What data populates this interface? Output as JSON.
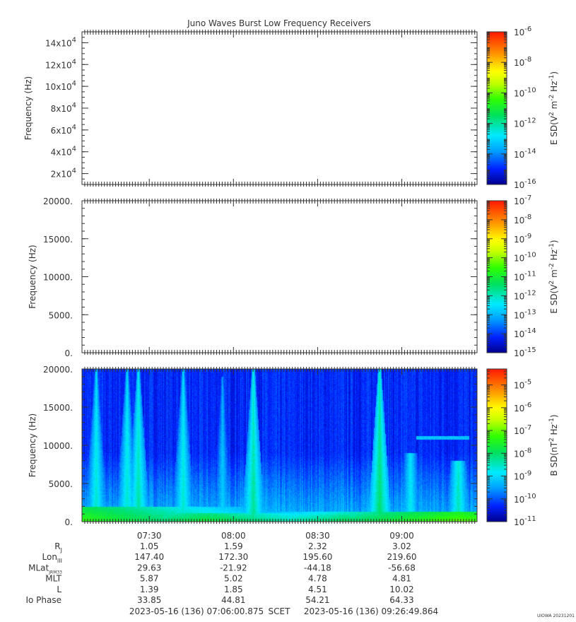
{
  "title": "Juno Waves Burst Low Frequency Receivers",
  "chart_data": [
    {
      "type": "heatmap",
      "panel": "top",
      "ylabel": "Frequency (Hz)",
      "y_scale": "linear",
      "ylim": [
        10000,
        150000
      ],
      "y_ticks": [
        {
          "value": 20000,
          "mant": "2x10",
          "exp": "4"
        },
        {
          "value": 40000,
          "mant": "4x10",
          "exp": "4"
        },
        {
          "value": 60000,
          "mant": "6x10",
          "exp": "4"
        },
        {
          "value": 80000,
          "mant": "8x10",
          "exp": "4"
        },
        {
          "value": 100000,
          "mant": "10x10",
          "exp": "4"
        },
        {
          "value": 120000,
          "mant": "12x10",
          "exp": "4"
        },
        {
          "value": 140000,
          "mant": "14x10",
          "exp": "4"
        }
      ],
      "data": "empty",
      "colorbar": {
        "label_parts": [
          "E SD(V",
          "2",
          " m",
          "-2",
          " Hz",
          "-1",
          ")"
        ],
        "scale": "log",
        "range_exp": [
          -16,
          -6
        ],
        "ticks": [
          "-6",
          "-8",
          "-10",
          "-12",
          "-14",
          "-16"
        ]
      }
    },
    {
      "type": "heatmap",
      "panel": "middle",
      "ylabel": "Frequency (Hz)",
      "y_scale": "linear",
      "ylim": [
        0,
        20000
      ],
      "y_ticks": [
        "0.",
        "5000.",
        "10000.",
        "15000.",
        "20000."
      ],
      "y_tick_values": [
        0,
        5000,
        10000,
        15000,
        20000
      ],
      "data": "empty",
      "colorbar": {
        "label_parts": [
          "E SD(V",
          "2",
          " m",
          "-2",
          " Hz",
          "-1",
          ")"
        ],
        "scale": "log",
        "range_exp": [
          -15,
          -7
        ],
        "ticks": [
          "-7",
          "-8",
          "-9",
          "-10",
          "-11",
          "-12",
          "-13",
          "-14",
          "-15"
        ]
      }
    },
    {
      "type": "heatmap",
      "panel": "bottom",
      "ylabel": "Frequency (Hz)",
      "y_scale": "linear",
      "ylim": [
        0,
        20000
      ],
      "y_ticks": [
        "0.",
        "5000.",
        "10000.",
        "15000.",
        "20000."
      ],
      "y_tick_values": [
        0,
        5000,
        10000,
        15000,
        20000
      ],
      "data": "spectrogram",
      "background_level_exp": -10.3,
      "emission_features": [
        {
          "type": "band",
          "time": "07:06",
          "fmin": 0,
          "fmax": 2000,
          "level_exp": -7.3
        },
        {
          "type": "band",
          "time": "07:50",
          "fmin": 0,
          "fmax": 1200,
          "level_exp": -7.6
        },
        {
          "type": "band",
          "time": "08:40",
          "fmin": 0,
          "fmax": 1000,
          "level_exp": -7.8
        },
        {
          "type": "band",
          "time": "09:20",
          "fmin": 0,
          "fmax": 1300,
          "level_exp": -7.0
        },
        {
          "type": "burst",
          "time": "07:11",
          "fmax": 20000,
          "level_exp": -8.5
        },
        {
          "type": "burst",
          "time": "07:22",
          "fmax": 20000,
          "level_exp": -8.5
        },
        {
          "type": "burst",
          "time": "07:26",
          "fmax": 20000,
          "level_exp": -8.3
        },
        {
          "type": "burst",
          "time": "07:42",
          "fmax": 20000,
          "level_exp": -8.5
        },
        {
          "type": "burst",
          "time": "07:56",
          "fmax": 19000,
          "level_exp": -9.0
        },
        {
          "type": "burst",
          "time": "08:07",
          "fmax": 20000,
          "level_exp": -8.2
        },
        {
          "type": "burst",
          "time": "08:52",
          "fmax": 20000,
          "level_exp": -8.0
        },
        {
          "type": "burst",
          "time": "09:03",
          "fmax": 9000,
          "level_exp": -8.7
        },
        {
          "type": "burst",
          "time": "09:20",
          "fmax": 8000,
          "level_exp": -8.4
        },
        {
          "type": "line",
          "time_start": "09:05",
          "time_end": "09:24",
          "freq": 11000,
          "level_exp": -9.2
        }
      ],
      "colorbar": {
        "label_parts": [
          "B SD(nT",
          "2",
          " Hz",
          "-1",
          ")"
        ],
        "scale": "log",
        "range_exp": [
          -11,
          -4.3
        ],
        "ticks": [
          "-5",
          "-6",
          "-7",
          "-8",
          "-9",
          "-10",
          "-11"
        ]
      }
    }
  ],
  "time_axis": {
    "start": "07:06:00.875",
    "end": "09:26:49.864",
    "tick_labels": [
      "07:30",
      "08:00",
      "08:30",
      "09:00"
    ],
    "tick_minutes_from_midnight": [
      450,
      480,
      510,
      540
    ]
  },
  "ephemeris": {
    "rows": [
      {
        "label": "R",
        "sub": "J",
        "values": [
          "1.05",
          "1.59",
          "2.32",
          "3.02"
        ]
      },
      {
        "label": "Lon",
        "sub": "III",
        "values": [
          "147.40",
          "172.30",
          "195.60",
          "219.60"
        ]
      },
      {
        "label": "MLat",
        "sub": "JRM33",
        "values": [
          "29.63",
          "-21.92",
          "-44.18",
          "-56.68"
        ]
      },
      {
        "label": "MLT",
        "sub": "",
        "values": [
          "5.87",
          "5.02",
          "4.78",
          "4.81"
        ]
      },
      {
        "label": "L",
        "sub": "",
        "values": [
          "1.39",
          "1.85",
          "4.51",
          "10.02"
        ]
      },
      {
        "label": "Io Phase",
        "sub": "",
        "values": [
          "33.85",
          "44.81",
          "54.21",
          "64.33"
        ]
      }
    ]
  },
  "footer": {
    "start": "2023-05-16 (136) 07:06:00.875",
    "mid": "SCET",
    "end": "2023-05-16 (136) 09:26:49.864",
    "credit": "UIOWA 20231201"
  }
}
